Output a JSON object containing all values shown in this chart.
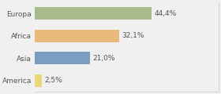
{
  "categories": [
    "Europa",
    "Africa",
    "Asia",
    "America"
  ],
  "values": [
    44.4,
    32.1,
    21.0,
    2.5
  ],
  "labels": [
    "44,4%",
    "32,1%",
    "21,0%",
    "2,5%"
  ],
  "bar_colors": [
    "#a8bb8a",
    "#e8b97a",
    "#7b9dbf",
    "#e8d87a"
  ],
  "background_color": "#f0f0f0",
  "xlim": [
    0,
    70
  ],
  "label_fontsize": 6.5,
  "tick_fontsize": 6.5,
  "bar_height": 0.55
}
